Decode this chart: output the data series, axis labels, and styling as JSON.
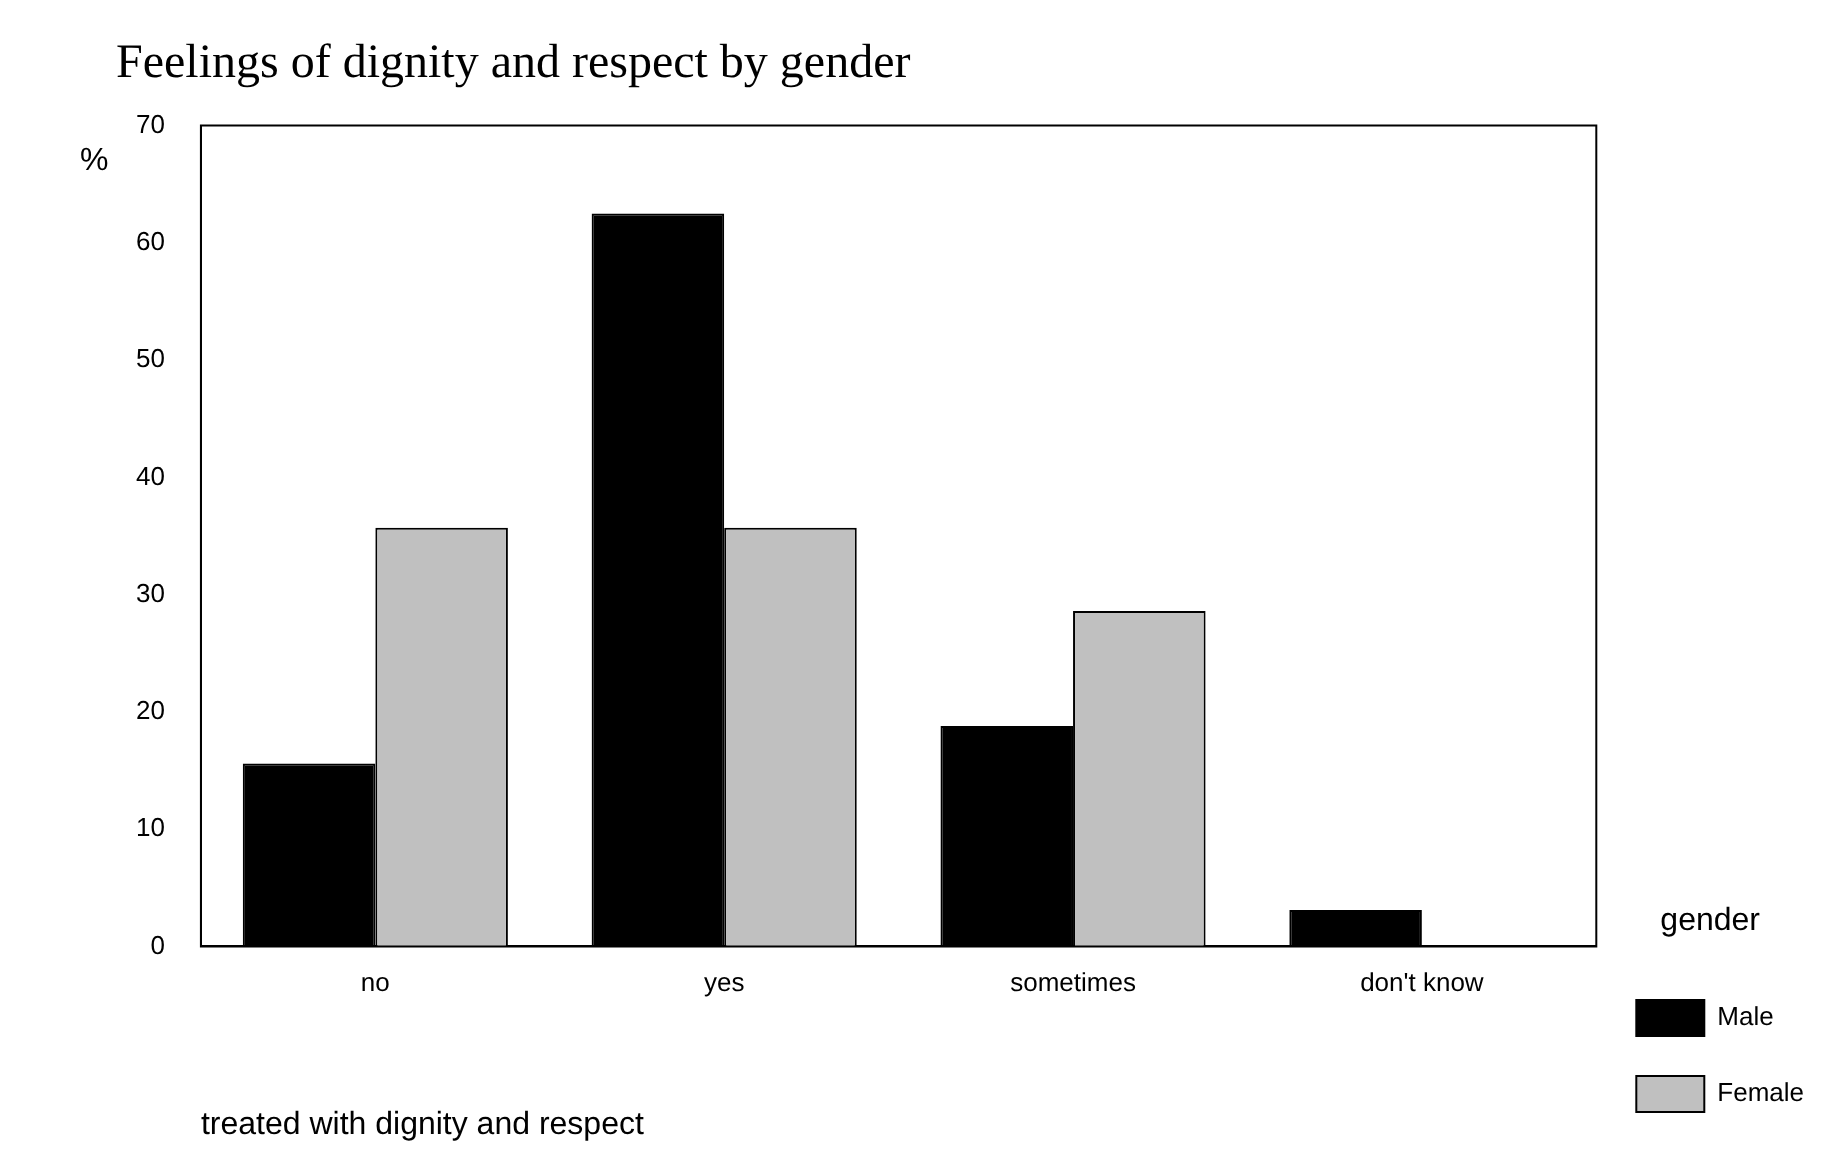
{
  "chart_data": {
    "type": "bar",
    "title": "Feelings of dignity and respect by gender",
    "xlabel": "treated with dignity and respect",
    "ylabel": "%",
    "legend_title": "gender",
    "categories": [
      "no",
      "yes",
      "sometimes",
      "don't know"
    ],
    "series": [
      {
        "name": "Male",
        "color": "#000000",
        "values": [
          15.6,
          62.5,
          18.8,
          3.1
        ]
      },
      {
        "name": "Female",
        "color": "#c0c0c0",
        "values": [
          35.7,
          35.7,
          28.6,
          0
        ]
      }
    ],
    "ylim": [
      0,
      70
    ],
    "yticks": [
      0,
      10,
      20,
      30,
      40,
      50,
      60,
      70
    ],
    "grid": false,
    "legend": "right"
  }
}
